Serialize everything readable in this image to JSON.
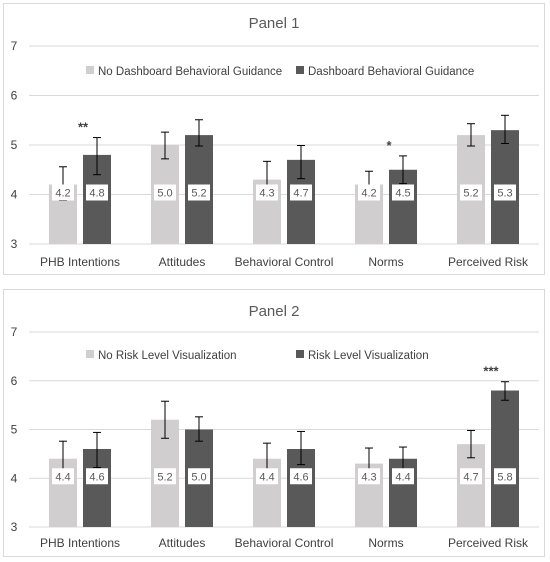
{
  "colors": {
    "light": "#d0cece",
    "dark": "#595959",
    "grid": "#d9d9d9",
    "error": "#000000"
  },
  "chart_data": [
    {
      "type": "bar",
      "title": "Panel 1",
      "ylim": [
        3,
        7
      ],
      "yticks": [
        "3",
        "4",
        "5",
        "6",
        "7"
      ],
      "grid": true,
      "legend": "top-center",
      "categories": [
        "PHB Intentions",
        "Attitudes",
        "Behavioral Control",
        "Norms",
        "Perceived Risk"
      ],
      "series": [
        {
          "name": "No Dashboard Behavioral Guidance",
          "values": [
            4.2,
            5.0,
            4.3,
            4.2,
            5.2
          ],
          "labels": [
            "4.2",
            "5.0",
            "4.3",
            "4.2",
            "5.2"
          ],
          "err_low": [
            3.88,
            4.72,
            3.98,
            3.9,
            4.98
          ],
          "err_high": [
            4.56,
            5.26,
            4.67,
            4.47,
            5.43
          ]
        },
        {
          "name": "Dashboard Behavioral Guidance",
          "values": [
            4.8,
            5.2,
            4.7,
            4.5,
            5.3
          ],
          "labels": [
            "4.8",
            "5.2",
            "4.7",
            "4.5",
            "5.3"
          ],
          "err_low": [
            4.4,
            4.98,
            4.32,
            4.22,
            5.03
          ],
          "err_high": [
            5.15,
            5.51,
            4.99,
            4.78,
            5.6
          ]
        }
      ],
      "annotations": [
        {
          "category": 0,
          "text": "**"
        },
        {
          "category": 3,
          "text": "*"
        }
      ]
    },
    {
      "type": "bar",
      "title": "Panel 2",
      "ylim": [
        3,
        7
      ],
      "yticks": [
        "3",
        "4",
        "5",
        "6",
        "7"
      ],
      "grid": true,
      "legend": "top-center",
      "categories": [
        "PHB Intentions",
        "Attitudes",
        "Behavioral Control",
        "Norms",
        "Perceived Risk"
      ],
      "series": [
        {
          "name": "No Risk Level Visualization",
          "values": [
            4.4,
            5.2,
            4.4,
            4.3,
            4.7
          ],
          "labels": [
            "4.4",
            "5.2",
            "4.4",
            "4.3",
            "4.7"
          ],
          "err_low": [
            4.08,
            4.82,
            4.02,
            4.02,
            4.42
          ],
          "err_high": [
            4.76,
            5.58,
            4.72,
            4.62,
            4.98
          ]
        },
        {
          "name": "Risk Level Visualization",
          "values": [
            4.6,
            5.0,
            4.6,
            4.4,
            5.8
          ],
          "labels": [
            "4.6",
            "5.0",
            "4.6",
            "4.4",
            "5.8"
          ],
          "err_low": [
            4.22,
            4.76,
            4.28,
            4.06,
            5.6
          ],
          "err_high": [
            4.94,
            5.26,
            4.96,
            4.64,
            5.98
          ]
        }
      ],
      "annotations": [
        {
          "category": 4,
          "text": "***"
        }
      ]
    }
  ]
}
